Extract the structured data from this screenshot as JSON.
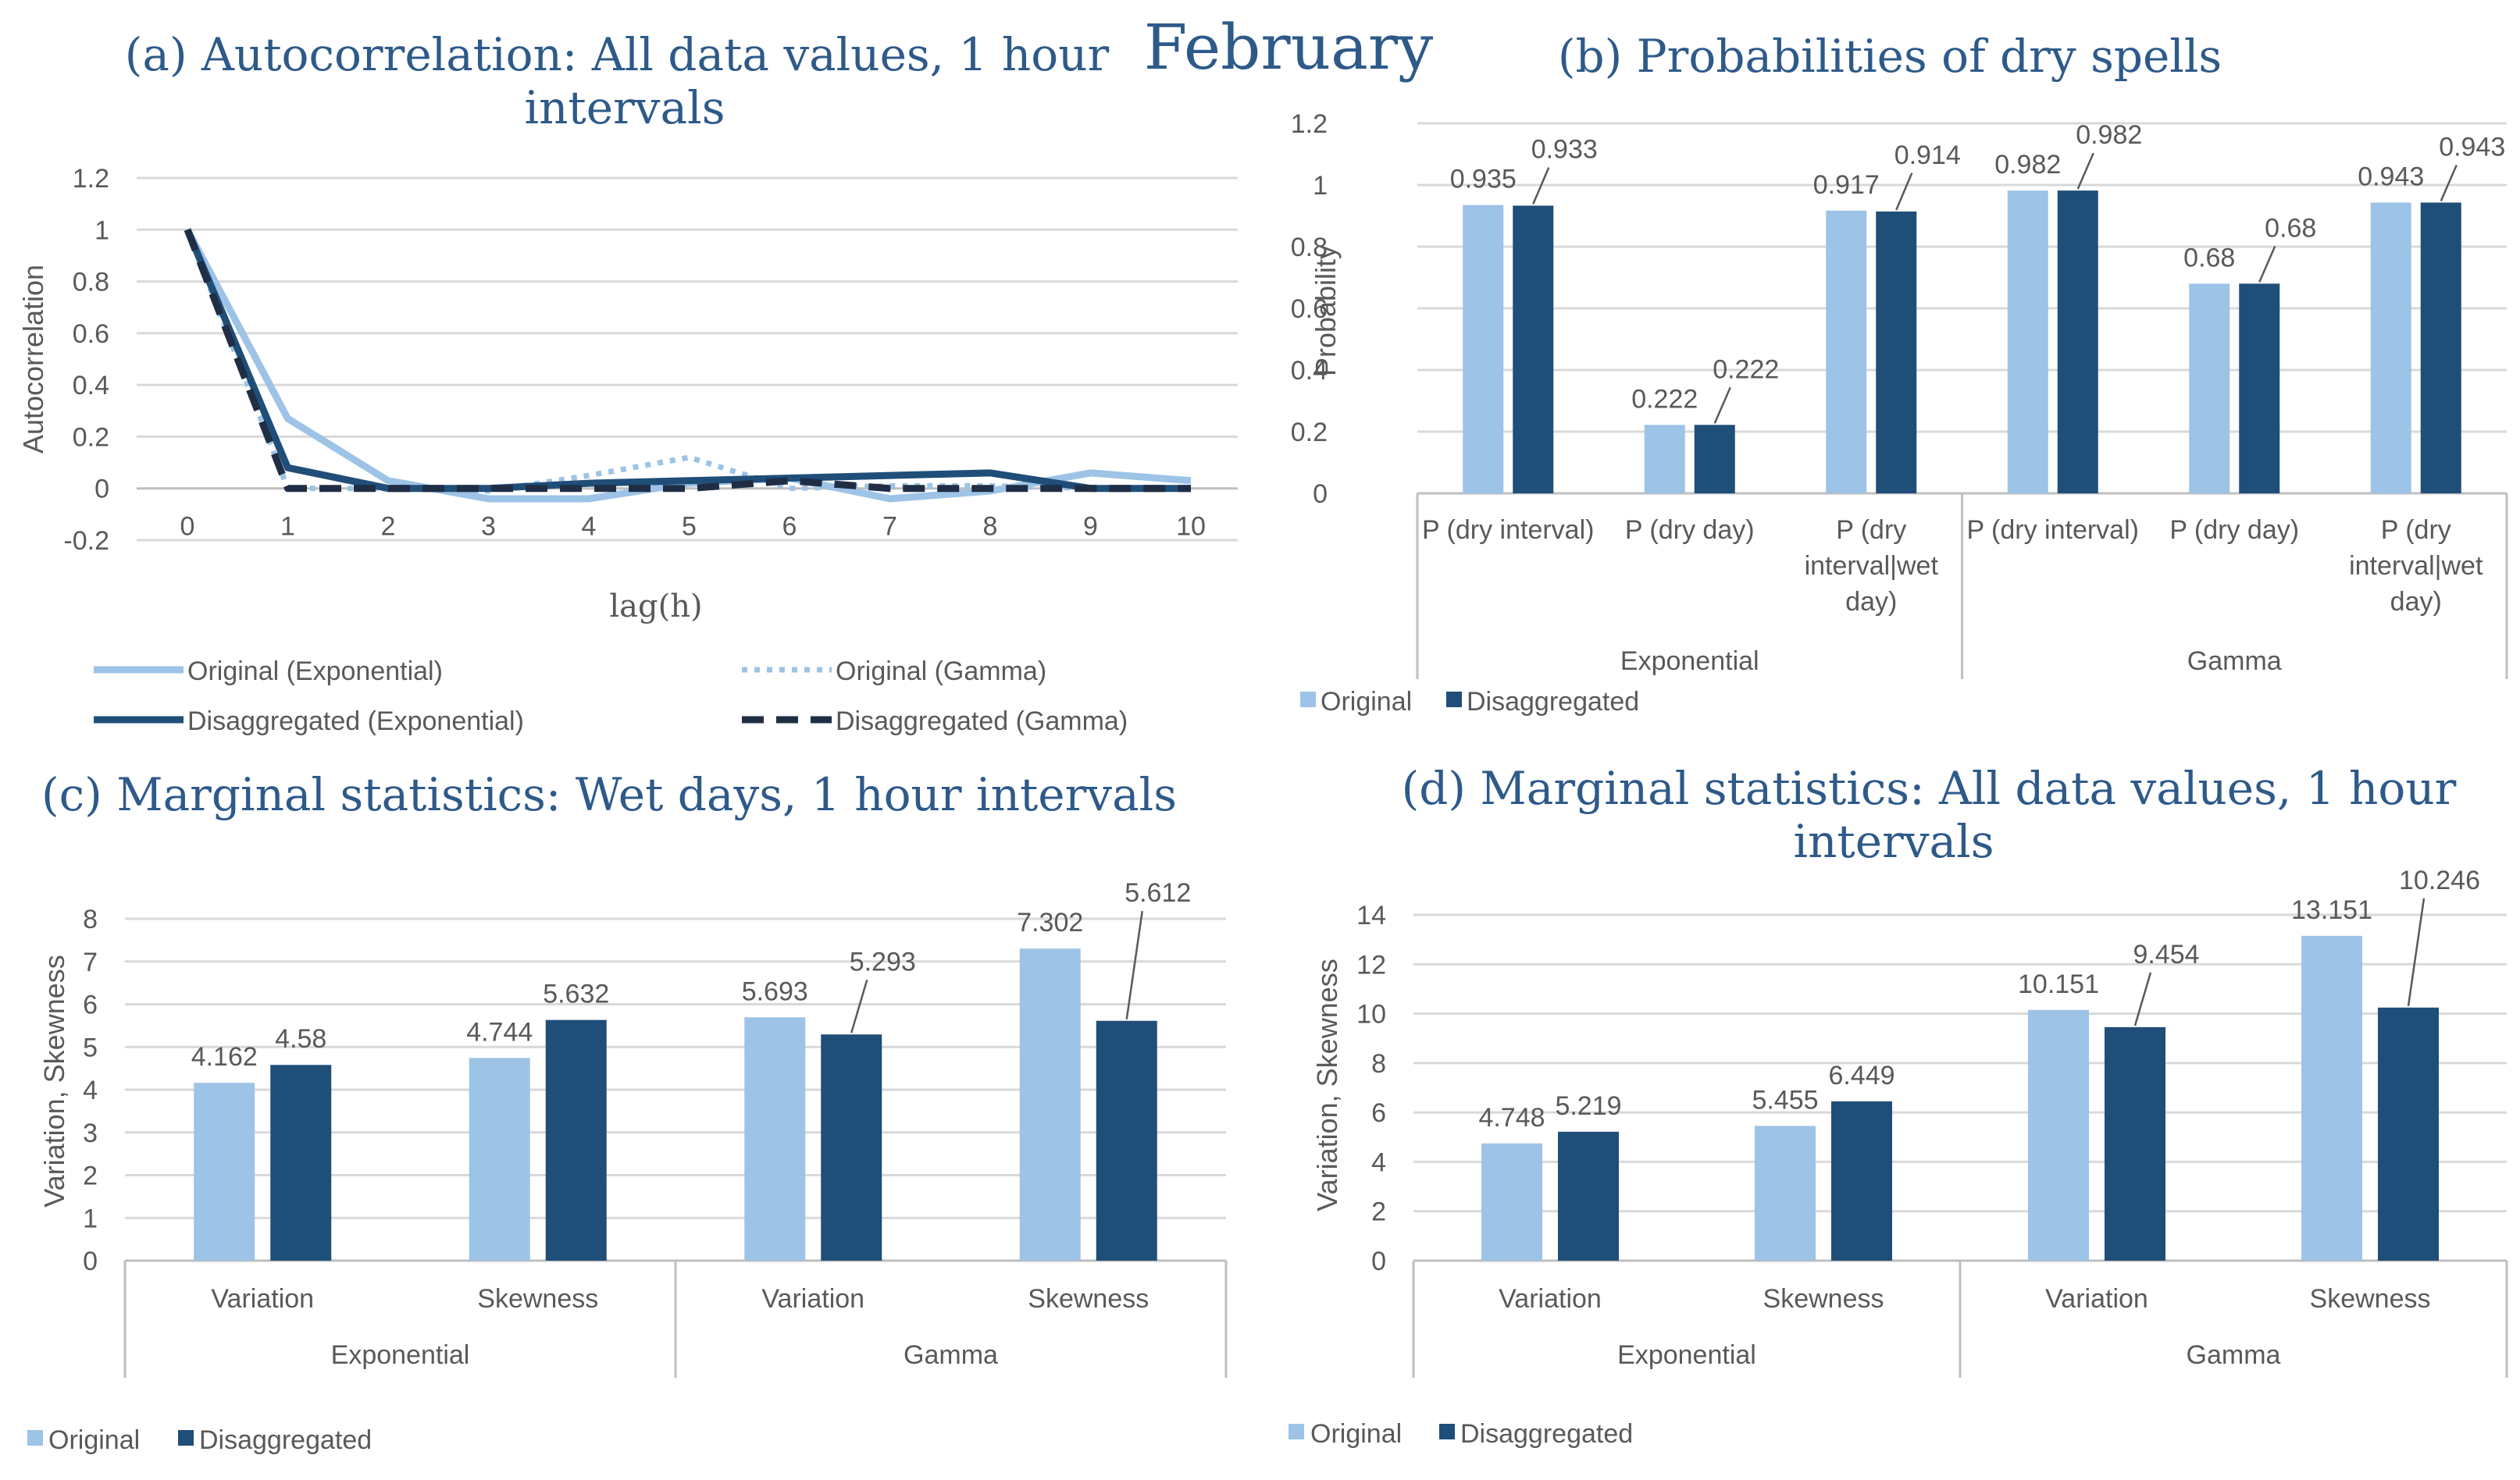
{
  "page": {
    "month": "February"
  },
  "colors": {
    "original": "#9DC3E6",
    "disaggregated": "#1F4E79",
    "gammaDis": "#1F2E45",
    "title": "#2E5A8A"
  },
  "chart_data": [
    {
      "id": "a",
      "type": "line",
      "title_line1": "(a) Autocorrelation: All data values, 1 hour",
      "title_line2": "intervals",
      "xlabel": "lag(h)",
      "ylabel": "Autocorrelation",
      "ylim": [
        -0.2,
        1.2
      ],
      "yticks": [
        "-0.2",
        "0",
        "0.2",
        "0.4",
        "0.6",
        "0.8",
        "1",
        "1.2"
      ],
      "x": [
        0,
        1,
        2,
        3,
        4,
        5,
        6,
        7,
        8,
        9,
        10
      ],
      "xticks": [
        "0",
        "1",
        "2",
        "3",
        "4",
        "5",
        "6",
        "7",
        "8",
        "9",
        "10"
      ],
      "series": [
        {
          "name": "Original (Exponential)",
          "values": [
            1.0,
            0.27,
            0.03,
            -0.04,
            -0.04,
            0.02,
            0.04,
            -0.04,
            -0.01,
            0.06,
            0.03
          ]
        },
        {
          "name": "Original (Gamma)",
          "values": [
            1.0,
            0.0,
            0.0,
            -0.01,
            0.05,
            0.12,
            0.0,
            0.01,
            0.01,
            0.0,
            0.0
          ]
        },
        {
          "name": "Disaggregated (Exponential)",
          "values": [
            1.0,
            0.08,
            0.0,
            0.0,
            0.02,
            0.03,
            0.04,
            0.05,
            0.06,
            0.0,
            0.0
          ]
        },
        {
          "name": "Disaggregated (Gamma)",
          "values": [
            1.0,
            0.0,
            0.0,
            0.0,
            0.0,
            0.0,
            0.03,
            0.0,
            0.0,
            0.0,
            0.0
          ]
        }
      ]
    },
    {
      "id": "b",
      "type": "bar",
      "title": "(b) Probabilities of dry spells",
      "ylabel": "Probability",
      "ylim": [
        0,
        1.2
      ],
      "yticks": [
        "0",
        "0.2",
        "0.4",
        "0.6",
        "0.8",
        "1",
        "1.2"
      ],
      "groups": [
        "Exponential",
        "Gamma"
      ],
      "categories": [
        {
          "lines": [
            "P (dry interval)"
          ]
        },
        {
          "lines": [
            "P (dry day)"
          ]
        },
        {
          "lines": [
            "P (dry",
            "interval|wet",
            "day)"
          ]
        },
        {
          "lines": [
            "P (dry interval)"
          ]
        },
        {
          "lines": [
            "P (dry day)"
          ]
        },
        {
          "lines": [
            "P (dry",
            "interval|wet",
            "day)"
          ]
        }
      ],
      "series": [
        {
          "name": "Original",
          "values": [
            0.935,
            0.222,
            0.917,
            0.982,
            0.68,
            0.943
          ]
        },
        {
          "name": "Disaggregated",
          "values": [
            0.933,
            0.222,
            0.914,
            0.982,
            0.68,
            0.943
          ]
        }
      ],
      "labels": [
        [
          "0.935",
          "0.222",
          "0.917",
          "0.982",
          "0.68",
          "0.943"
        ],
        [
          "0.933",
          "0.222",
          "0.914",
          "0.982",
          "0.68",
          "0.943"
        ]
      ],
      "legend": [
        "Original",
        "Disaggregated"
      ]
    },
    {
      "id": "c",
      "type": "bar",
      "title": "(c) Marginal statistics: Wet days, 1 hour intervals",
      "ylabel": "Variation, Skewness",
      "ylim": [
        0,
        8
      ],
      "yticks": [
        "0",
        "1",
        "2",
        "3",
        "4",
        "5",
        "6",
        "7",
        "8"
      ],
      "groups": [
        "Exponential",
        "Gamma"
      ],
      "categories": [
        {
          "lines": [
            "Variation"
          ]
        },
        {
          "lines": [
            "Skewness"
          ]
        },
        {
          "lines": [
            "Variation"
          ]
        },
        {
          "lines": [
            "Skewness"
          ]
        }
      ],
      "series": [
        {
          "name": "Original",
          "values": [
            4.162,
            4.744,
            5.693,
            7.302
          ]
        },
        {
          "name": "Disaggregated",
          "values": [
            4.58,
            5.632,
            5.293,
            5.612
          ]
        }
      ],
      "labels": [
        [
          "4.162",
          "4.744",
          "5.693",
          "7.302"
        ],
        [
          "4.58",
          "5.632",
          "5.293",
          "5.612"
        ]
      ],
      "legend": [
        "Original",
        "Disaggregated"
      ]
    },
    {
      "id": "d",
      "type": "bar",
      "title_line1": "(d) Marginal statistics: All data values, 1 hour",
      "title_line2": "intervals",
      "ylabel": "Variation, Skewness",
      "ylim": [
        0,
        14
      ],
      "yticks": [
        "0",
        "2",
        "4",
        "6",
        "8",
        "10",
        "12",
        "14"
      ],
      "groups": [
        "Exponential",
        "Gamma"
      ],
      "categories": [
        {
          "lines": [
            "Variation"
          ]
        },
        {
          "lines": [
            "Skewness"
          ]
        },
        {
          "lines": [
            "Variation"
          ]
        },
        {
          "lines": [
            "Skewness"
          ]
        }
      ],
      "series": [
        {
          "name": "Original",
          "values": [
            4.748,
            5.455,
            10.151,
            13.151
          ]
        },
        {
          "name": "Disaggregated",
          "values": [
            5.219,
            6.449,
            9.454,
            10.246
          ]
        }
      ],
      "labels": [
        [
          "4.748",
          "5.455",
          "10.151",
          "13.151"
        ],
        [
          "5.219",
          "6.449",
          "9.454",
          "10.246"
        ]
      ],
      "legend": [
        "Original",
        "Disaggregated"
      ]
    }
  ]
}
